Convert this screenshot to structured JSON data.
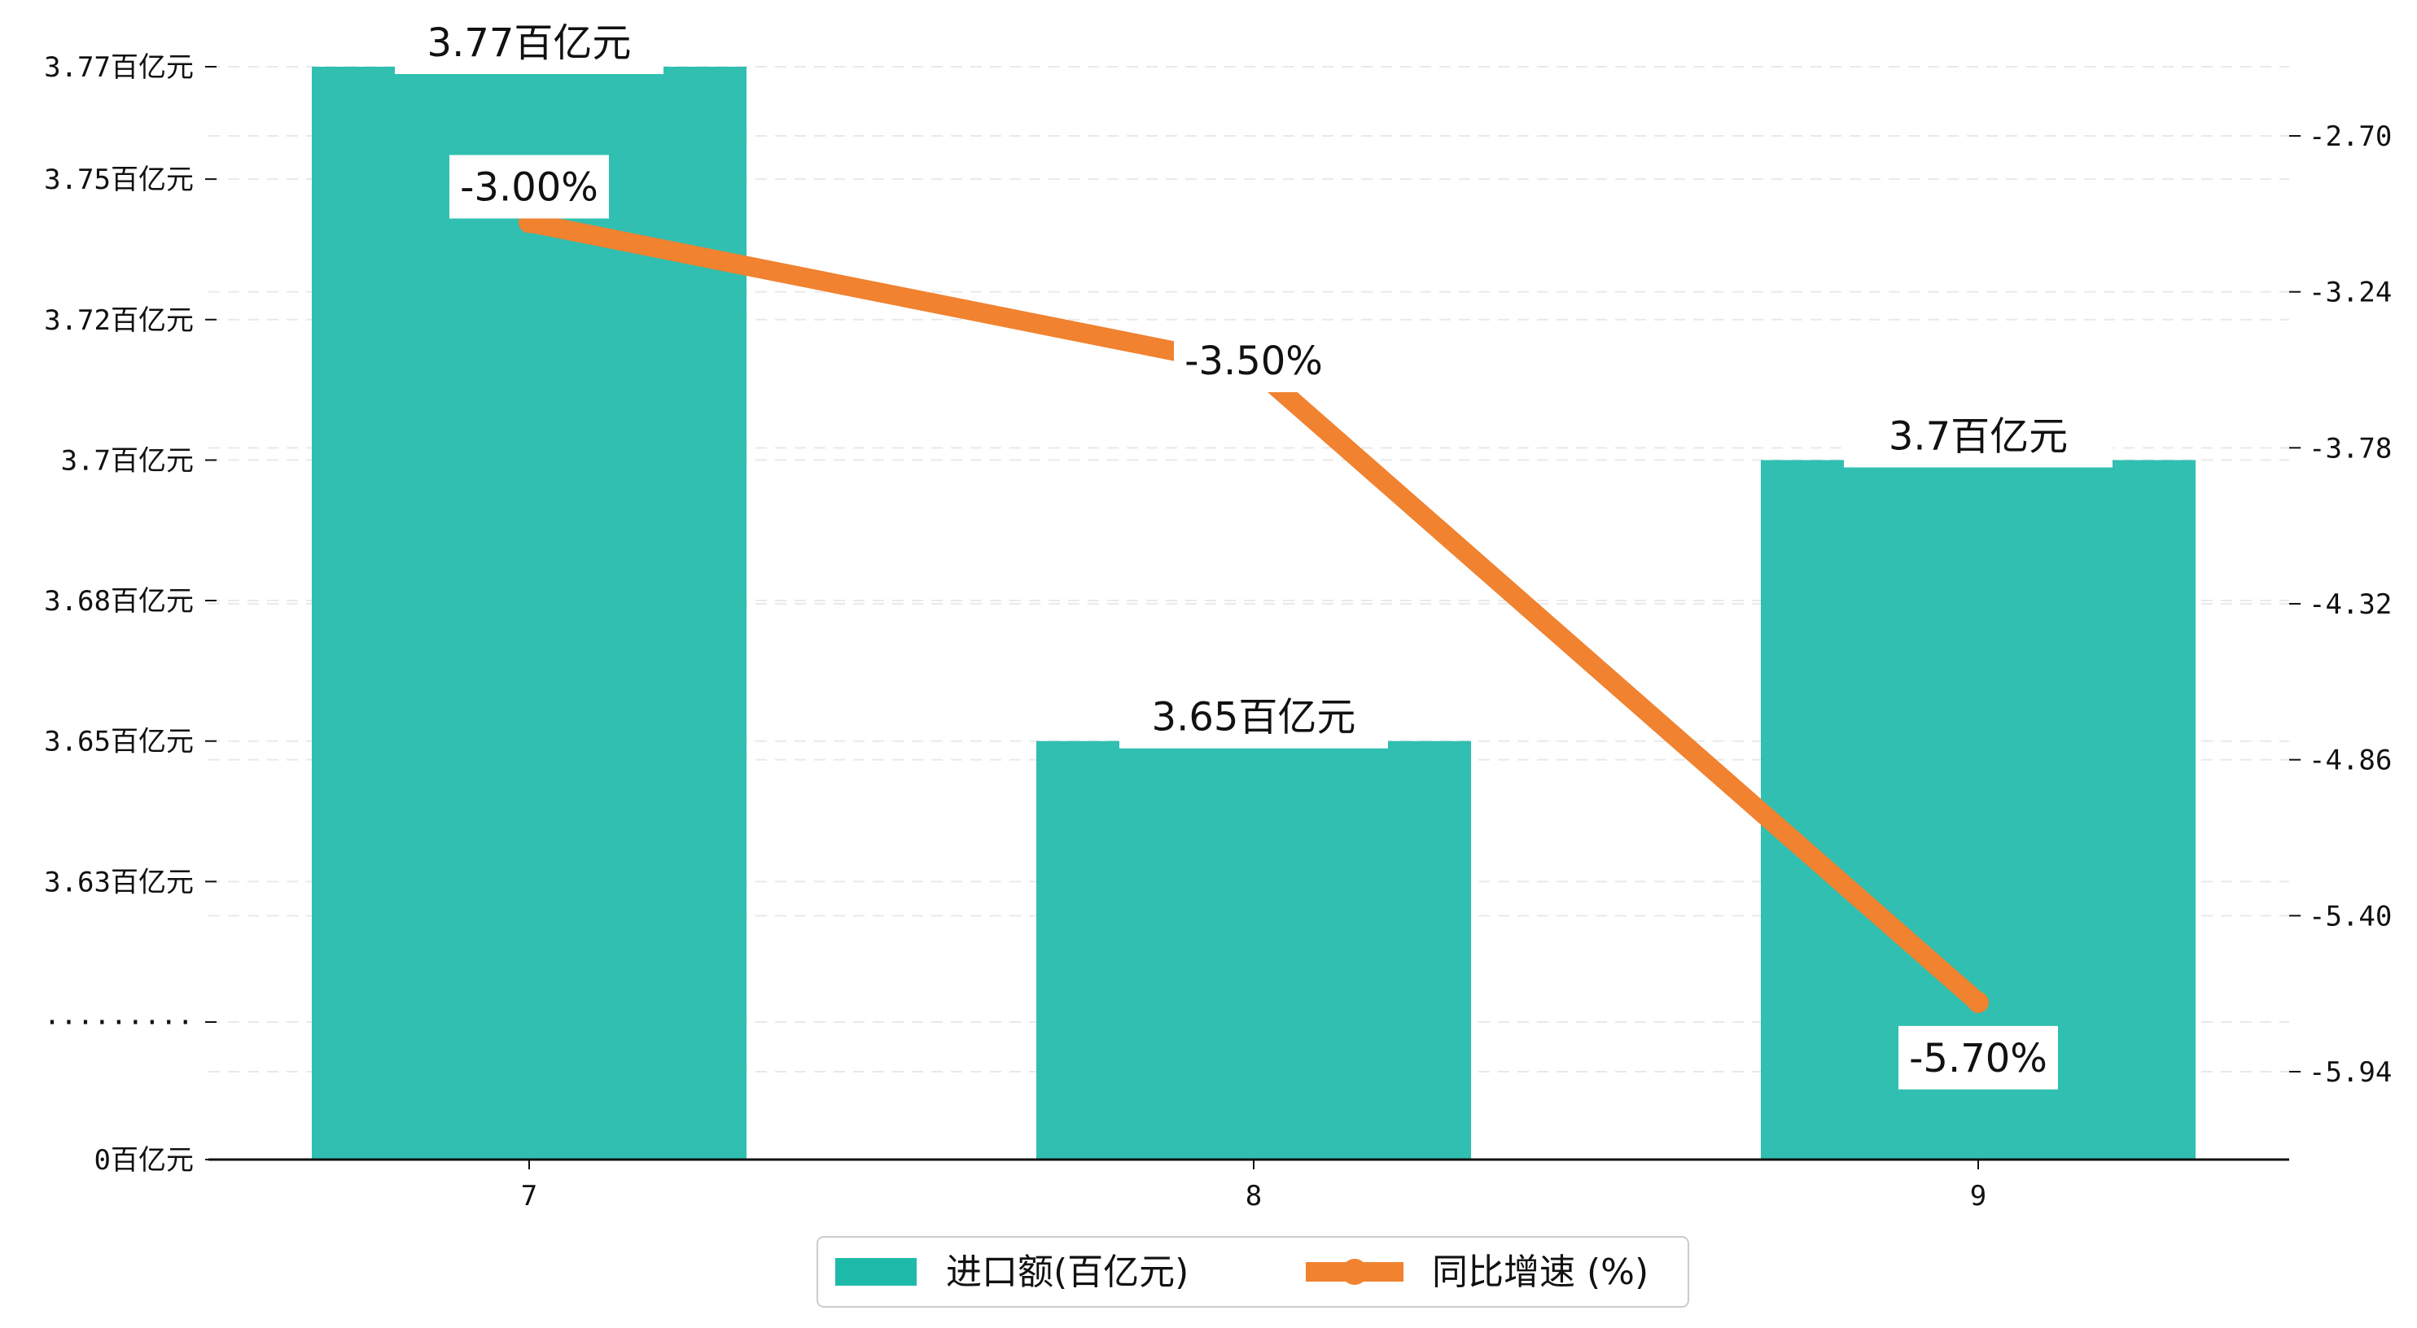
{
  "chart_data": {
    "type": "bar",
    "categories": [
      "7",
      "8",
      "9"
    ],
    "series": [
      {
        "name": "进口额(百亿元)",
        "type": "bar",
        "axis": "left",
        "values": [
          3.77,
          3.65,
          3.7
        ],
        "labels": [
          "3.77百亿元",
          "3.65百亿元",
          "3.7百亿元"
        ],
        "color": "#1ebaa9"
      },
      {
        "name": "同比增速 (%)",
        "type": "line",
        "axis": "right",
        "values": [
          -3.0,
          -3.5,
          -5.7
        ],
        "labels": [
          "-3.00%",
          "-3.50%",
          "-5.70%"
        ],
        "color": "#f08230"
      }
    ],
    "left_axis": {
      "broken": true,
      "ticks": [
        {
          "value": 0,
          "label": "0百亿元"
        },
        {
          "value": null,
          "label": "·········"
        },
        {
          "value": 3.625,
          "label": "3.63百亿元"
        },
        {
          "value": 3.65,
          "label": "3.65百亿元"
        },
        {
          "value": 3.675,
          "label": "3.68百亿元"
        },
        {
          "value": 3.7,
          "label": "3.7百亿元"
        },
        {
          "value": 3.725,
          "label": "3.72百亿元"
        },
        {
          "value": 3.75,
          "label": "3.75百亿元"
        },
        {
          "value": 3.77,
          "label": "3.77百亿元"
        }
      ]
    },
    "right_axis": {
      "ylim": [
        -6.15,
        -2.5
      ],
      "ticks": [
        "-2.70",
        "-3.24",
        "-3.78",
        "-4.32",
        "-4.86",
        "-5.40",
        "-5.94"
      ]
    },
    "grid": "horizontal-dashed",
    "legend_position": "bottom-center"
  }
}
